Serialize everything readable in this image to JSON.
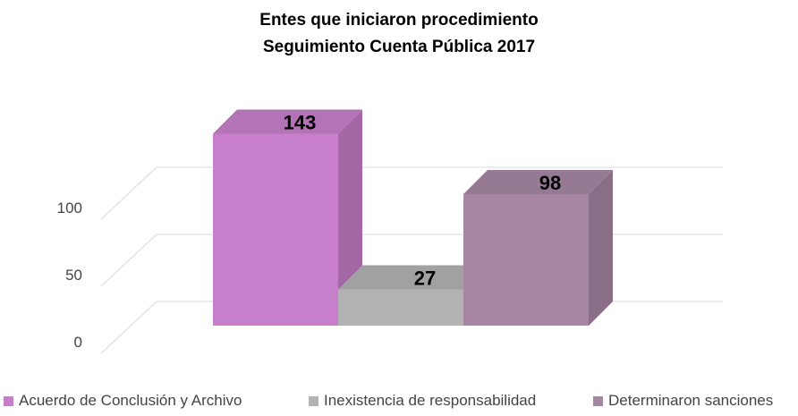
{
  "chart_data": {
    "type": "bar",
    "title": "Entes que iniciaron procedimiento",
    "subtitle": "Seguimiento Cuenta Pública 2017",
    "categories": [
      "Acuerdo de Conclusión y Archivo",
      "Inexistencia de responsabilidad",
      "Determinaron sanciones"
    ],
    "values": [
      143,
      27,
      98
    ],
    "colors": [
      "#c87fcb",
      "#b3b3b3",
      "#a786a3"
    ],
    "yticks": [
      0,
      50,
      100
    ],
    "ylim": [
      0,
      150
    ],
    "grid": true,
    "three_d": true,
    "legend_position": "bottom"
  }
}
